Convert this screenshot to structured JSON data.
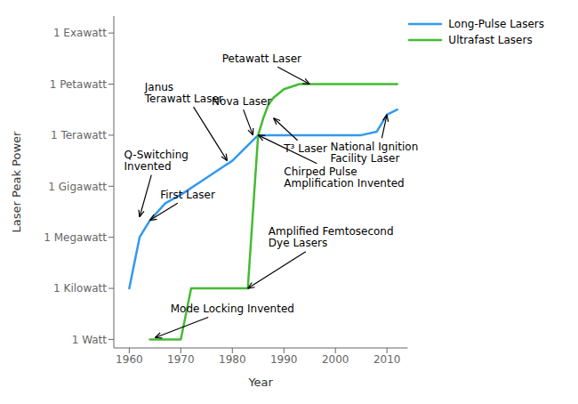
{
  "chart_data": {
    "type": "line",
    "xlabel": "Year",
    "ylabel": "Laser Peak Power",
    "xlim": [
      1957,
      2014
    ],
    "xticks": [
      1960,
      1970,
      1980,
      1990,
      2000,
      2010
    ],
    "ylim": [
      -0.5,
      19
    ],
    "yticks": [
      {
        "value": 0,
        "label": "1 Watt"
      },
      {
        "value": 3,
        "label": "1 Kilowatt"
      },
      {
        "value": 6,
        "label": "1 Megawatt"
      },
      {
        "value": 9,
        "label": "1 Gigawatt"
      },
      {
        "value": 12,
        "label": "1 Terawatt"
      },
      {
        "value": 15,
        "label": "1 Petawatt"
      },
      {
        "value": 18,
        "label": "1 Exawatt"
      }
    ],
    "grid": false,
    "legend": "upper right",
    "series": [
      {
        "name": "Long-Pulse Lasers",
        "color": "#3399EE",
        "x": [
          1960,
          1961,
          1962,
          1964,
          1967,
          1970,
          1975,
          1980,
          1985,
          1987,
          1990,
          1995,
          2000,
          2005,
          2008,
          2010,
          2012
        ],
        "values": [
          3,
          4.5,
          6,
          7,
          8,
          8.5,
          9.5,
          10.5,
          12,
          12,
          12,
          12,
          12,
          12,
          12.2,
          13.2,
          13.5
        ]
      },
      {
        "name": "Ultrafast Lasers",
        "color": "#44BB33",
        "x": [
          1964,
          1965,
          1968,
          1970,
          1972,
          1973,
          1980,
          1983,
          1985,
          1986,
          1987,
          1988,
          1990,
          1993,
          1996,
          1998,
          2005,
          2012
        ],
        "values": [
          0,
          0,
          0,
          0,
          3,
          3,
          3,
          3,
          12,
          13,
          13.8,
          14.2,
          14.7,
          15,
          15,
          15,
          15,
          15
        ]
      }
    ],
    "annotations": [
      {
        "text": "Janus\nTerawatt Laser",
        "xy": [
          1979,
          10.5
        ],
        "xytext": [
          1963,
          14.5
        ]
      },
      {
        "text": "Q-Switching\nInvented",
        "xy": [
          1962,
          7.2
        ],
        "xytext": [
          1959,
          10.5
        ]
      },
      {
        "text": "First Laser",
        "xy": [
          1964,
          7.0
        ],
        "xytext": [
          1966,
          8.5
        ]
      },
      {
        "text": "Petawatt Laser",
        "xy": [
          1995,
          15.0
        ],
        "xytext": [
          1978,
          16.5
        ]
      },
      {
        "text": "Nova Laser",
        "xy": [
          1984,
          12.0
        ],
        "xytext": [
          1976,
          14.0
        ]
      },
      {
        "text": "National Ignition\nFacility Laser",
        "xy": [
          2010,
          13.2
        ],
        "xytext": [
          1999,
          11.0
        ]
      },
      {
        "text": "T³ Laser",
        "xy": [
          1988,
          13.0
        ],
        "xytext": [
          1990,
          11.2
        ]
      },
      {
        "text": "Chirped Pulse\nAmplification Invented",
        "xy": [
          1985,
          12.0
        ],
        "xytext": [
          1990,
          9.5
        ]
      },
      {
        "text": "Amplified Femtosecond\nDye Lasers",
        "xy": [
          1983,
          3.0
        ],
        "xytext": [
          1987,
          6.0
        ]
      },
      {
        "text": "Mode Locking Invented",
        "xy": [
          1965,
          0.1
        ],
        "xytext": [
          1968,
          1.8
        ]
      }
    ]
  }
}
